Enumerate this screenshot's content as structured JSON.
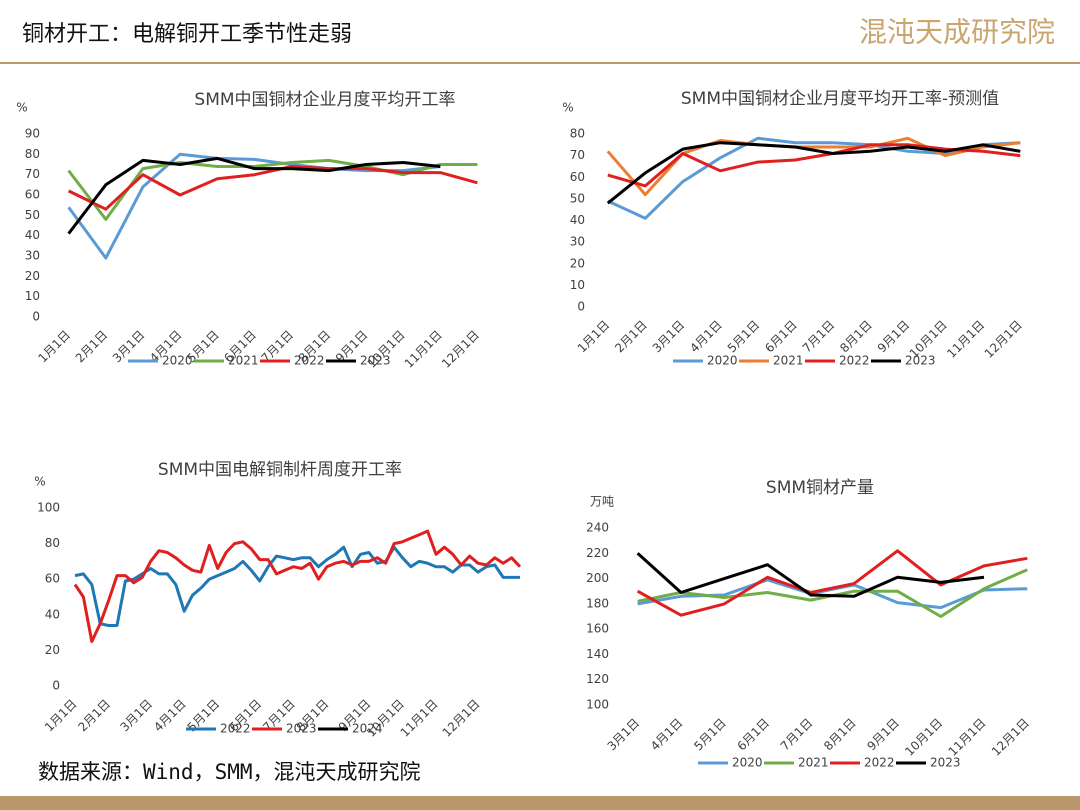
{
  "header": {
    "title": "铜材开工：电解铜开工季节性走弱",
    "logo": "混沌天成研究院"
  },
  "source": "数据来源：Wind，SMM，混沌天成研究院",
  "chart_data": [
    {
      "type": "line",
      "title": "SMM中国铜材企业月度平均开工率",
      "y_label": "%",
      "categories": [
        "1月1日",
        "2月1日",
        "3月1日",
        "4月1日",
        "5月1日",
        "6月1日",
        "7月1日",
        "8月1日",
        "9月1日",
        "10月1日",
        "11月1日",
        "12月1日"
      ],
      "ylim": [
        0,
        90
      ],
      "yticks": [
        0,
        10,
        20,
        30,
        40,
        50,
        60,
        70,
        80,
        90
      ],
      "legend": "bottom",
      "series": [
        {
          "name": "2020",
          "color": "#5b9bd5",
          "values": [
            54,
            29,
            64,
            80,
            78,
            77.5,
            75,
            73,
            72,
            72,
            74,
            null
          ]
        },
        {
          "name": "2021",
          "color": "#70ad47",
          "values": [
            72,
            48,
            73,
            76,
            74,
            74,
            76,
            77,
            74,
            70,
            75,
            75
          ]
        },
        {
          "name": "2022",
          "color": "#e02020",
          "values": [
            62,
            53,
            70,
            60,
            68,
            70,
            74,
            73,
            73,
            71,
            71,
            66
          ]
        },
        {
          "name": "2023",
          "color": "#000000",
          "values": [
            41,
            65,
            77,
            75,
            78,
            73,
            73,
            72,
            75,
            76,
            74,
            null
          ]
        }
      ]
    },
    {
      "type": "line",
      "title": "SMM中国铜材企业月度平均开工率-预测值",
      "y_label": "%",
      "categories": [
        "1月1日",
        "2月1日",
        "3月1日",
        "4月1日",
        "5月1日",
        "6月1日",
        "7月1日",
        "8月1日",
        "9月1日",
        "10月1日",
        "11月1日",
        "12月1日"
      ],
      "ylim": [
        0,
        80
      ],
      "yticks": [
        0,
        10,
        20,
        30,
        40,
        50,
        60,
        70,
        80
      ],
      "legend": "bottom",
      "series": [
        {
          "name": "2020",
          "color": "#5b9bd5",
          "values": [
            49,
            41,
            58,
            69,
            78,
            76,
            76,
            75,
            72,
            71,
            75,
            76
          ]
        },
        {
          "name": "2021",
          "color": "#ed7d31",
          "values": [
            72,
            52,
            71,
            77,
            75,
            74,
            74,
            74,
            78,
            70,
            74,
            76
          ]
        },
        {
          "name": "2022",
          "color": "#e02020",
          "values": [
            61,
            56,
            71,
            63,
            67,
            68,
            71,
            75,
            75,
            73,
            72,
            70
          ]
        },
        {
          "name": "2023",
          "color": "#000000",
          "values": [
            48,
            62,
            73,
            76,
            75,
            74,
            71,
            72,
            74,
            72,
            75,
            72
          ]
        }
      ]
    },
    {
      "type": "line",
      "title": "SMM中国电解铜制杆周度开工率",
      "y_label": "%",
      "categories": [
        "1月1日",
        null,
        null,
        null,
        "2月1日",
        null,
        null,
        null,
        null,
        "3月1日",
        null,
        null,
        null,
        "4月1日",
        null,
        null,
        null,
        "5月1日",
        null,
        null,
        null,
        null,
        "6月1日",
        null,
        null,
        null,
        "7月1日",
        null,
        null,
        null,
        "8月1日",
        null,
        null,
        null,
        null,
        "9月1日",
        null,
        null,
        null,
        "10月1日",
        null,
        null,
        null,
        "11月1日",
        null,
        null,
        null,
        null,
        "12月1日",
        null,
        null,
        null,
        null,
        null
      ],
      "ylim": [
        0,
        100
      ],
      "yticks": [
        0,
        20,
        40,
        60,
        80,
        100
      ],
      "legend": "bottom",
      "series": [
        {
          "name": "2022",
          "color": "#1f77b4",
          "values": [
            62,
            63,
            57,
            35,
            34,
            34,
            59,
            60,
            63,
            66,
            63,
            63,
            57,
            42,
            51,
            55,
            60,
            62,
            64,
            66,
            70,
            65,
            59,
            67,
            73,
            72,
            71,
            72,
            72,
            67,
            71,
            74,
            78,
            67,
            74,
            75,
            69,
            70,
            78,
            72,
            67,
            70,
            69,
            67,
            67,
            64,
            68,
            68,
            64,
            67,
            68,
            61,
            61,
            61
          ]
        },
        {
          "name": "2023",
          "color": "#e02020",
          "values": [
            57,
            50,
            25,
            35,
            48,
            62,
            62,
            58,
            61,
            70,
            76,
            75,
            72,
            68,
            65,
            64,
            79,
            66,
            75,
            80,
            81,
            77,
            71,
            71,
            63,
            65,
            67,
            66,
            69,
            60,
            67,
            69,
            70,
            68,
            70,
            70,
            72,
            69,
            80,
            81,
            83,
            85,
            87,
            74,
            78,
            74,
            68,
            73,
            69,
            68,
            72,
            69,
            72,
            67
          ]
        },
        {
          "name": "2024",
          "color": "#000000",
          "values": [
            null,
            null,
            null,
            null,
            null,
            null,
            null,
            null,
            null,
            null,
            null,
            null,
            null,
            null,
            null,
            null,
            null,
            null,
            null,
            null,
            null,
            null,
            null,
            null,
            null,
            null,
            null,
            null,
            null,
            null,
            null,
            null,
            null,
            null,
            null,
            null,
            null,
            null,
            null,
            null,
            null,
            null,
            null,
            null,
            null,
            null,
            null,
            null,
            null,
            null,
            null,
            null,
            null,
            null
          ]
        }
      ]
    },
    {
      "type": "line",
      "title": "SMM铜材产量",
      "y_label": "万吨",
      "categories": [
        "3月1日",
        "4月1日",
        "5月1日",
        "6月1日",
        "7月1日",
        "8月1日",
        "9月1日",
        "10月1日",
        "11月1日",
        "12月1日"
      ],
      "ylim": [
        100,
        240
      ],
      "yticks": [
        100,
        120,
        140,
        160,
        180,
        200,
        220,
        240
      ],
      "legend": "bottom",
      "series": [
        {
          "name": "2020",
          "color": "#5b9bd5",
          "values": [
            180,
            186,
            187,
            199,
            188,
            195,
            181,
            177,
            191,
            192
          ]
        },
        {
          "name": "2021",
          "color": "#70ad47",
          "values": [
            182,
            189,
            185,
            189,
            183,
            190,
            190,
            170,
            192,
            207
          ]
        },
        {
          "name": "2022",
          "color": "#e02020",
          "values": [
            190,
            171,
            180,
            201,
            189,
            196,
            222,
            195,
            210,
            216
          ]
        },
        {
          "name": "2023",
          "color": "#000000",
          "values": [
            220,
            189,
            200,
            211,
            187,
            186,
            201,
            197,
            201,
            null
          ]
        }
      ]
    }
  ]
}
